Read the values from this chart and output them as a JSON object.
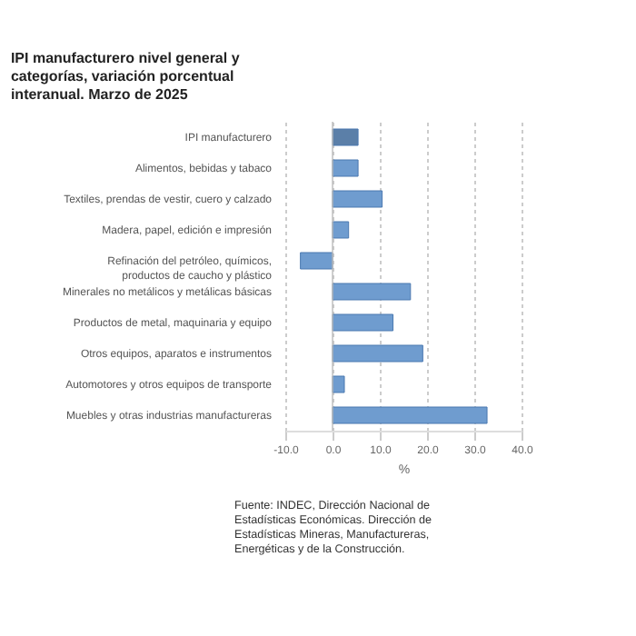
{
  "chart_data": {
    "type": "bar",
    "orientation": "horizontal",
    "title": "IPI manufacturero nivel general y categorías, variación porcentual interanual. Marzo de 2025",
    "categories": [
      "IPI manufacturero",
      "Alimentos, bebidas y tabaco",
      "Textiles, prendas de vestir, cuero y calzado",
      "Madera, papel, edición e impresión",
      "Refinación del petróleo, químicos, productos de caucho y plástico",
      "Minerales no metálicos y metálicas básicas",
      "Productos de metal, maquinaria y equipo",
      "Otros equipos, aparatos e instrumentos",
      "Automotores y otros equipos de transporte",
      "Muebles y otras industrias manufactureras"
    ],
    "values": [
      5.4,
      5.4,
      10.5,
      3.4,
      -6.8,
      16.5,
      12.8,
      19.1,
      2.5,
      32.7
    ],
    "colors": [
      "#5b7fa8",
      "#6f9ccf",
      "#6f9ccf",
      "#6f9ccf",
      "#6f9ccf",
      "#6f9ccf",
      "#6f9ccf",
      "#6f9ccf",
      "#6f9ccf",
      "#6f9ccf"
    ],
    "xlabel": "%",
    "xlim": [
      -10,
      40
    ],
    "xticks": [
      {
        "value": -10,
        "label": "-10.0"
      },
      {
        "value": 0,
        "label": "0.0"
      },
      {
        "value": 10,
        "label": "10.0"
      },
      {
        "value": 20,
        "label": "20.0"
      },
      {
        "value": 30,
        "label": "30.0"
      },
      {
        "value": 40,
        "label": "40.0"
      }
    ],
    "grid": "x",
    "annotations": [
      "Fuente: INDEC, Dirección Nacional de Estadísticas Económicas. Dirección de Estadísticas Mineras, Manufactureras, Energéticas y de la Construcción."
    ]
  }
}
